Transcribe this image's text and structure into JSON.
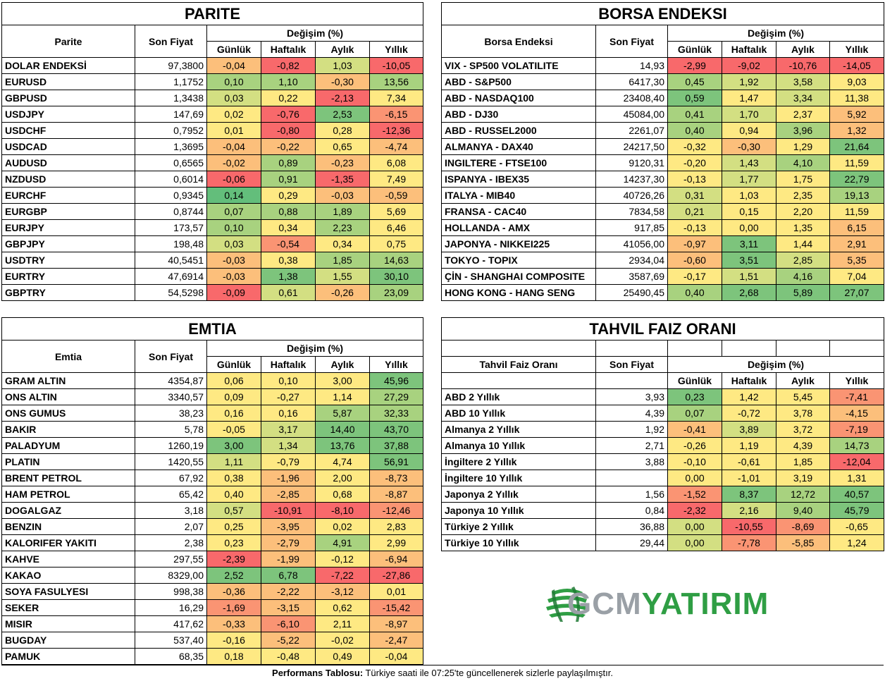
{
  "colors": {
    "red": "#f8696b",
    "orange_red": "#fa9473",
    "orange": "#fcbf7b",
    "yellow": "#fee983",
    "lime": "#d3df82",
    "light_green": "#a8d27f",
    "green": "#7dc47c",
    "dark_green": "#63be7b"
  },
  "common_headers": {
    "son_fiyat": "Son Fiyat",
    "degisim": "Değişim (%)",
    "gunluk": "Günlük",
    "haftalik": "Haftalık",
    "aylik": "Aylık",
    "yillik": "Yıllık"
  },
  "parite": {
    "title": "PARITE",
    "col": "Parite",
    "rows": [
      [
        "DOLAR ENDEKSİ",
        "97,3800",
        "-0,04",
        "-0,82",
        "1,03",
        "-10,05"
      ],
      [
        "EURUSD",
        "1,1752",
        "0,10",
        "1,10",
        "-0,30",
        "13,56"
      ],
      [
        "GBPUSD",
        "1,3438",
        "0,03",
        "0,22",
        "-2,13",
        "7,34"
      ],
      [
        "USDJPY",
        "147,69",
        "0,02",
        "-0,76",
        "2,53",
        "-6,15"
      ],
      [
        "USDCHF",
        "0,7952",
        "0,01",
        "-0,80",
        "0,28",
        "-12,36"
      ],
      [
        "USDCAD",
        "1,3695",
        "-0,04",
        "-0,22",
        "0,65",
        "-4,74"
      ],
      [
        "AUDUSD",
        "0,6565",
        "-0,02",
        "0,89",
        "-0,23",
        "6,08"
      ],
      [
        "NZDUSD",
        "0,6014",
        "-0,06",
        "0,91",
        "-1,35",
        "7,49"
      ],
      [
        "EURCHF",
        "0,9345",
        "0,14",
        "0,29",
        "-0,03",
        "-0,59"
      ],
      [
        "EURGBP",
        "0,8744",
        "0,07",
        "0,88",
        "1,89",
        "5,69"
      ],
      [
        "EURJPY",
        "173,57",
        "0,10",
        "0,34",
        "2,23",
        "6,46"
      ],
      [
        "GBPJPY",
        "198,48",
        "0,03",
        "-0,54",
        "0,34",
        "0,75"
      ],
      [
        "USDTRY",
        "40,5451",
        "-0,03",
        "0,38",
        "1,85",
        "14,63"
      ],
      [
        "EURTRY",
        "47,6914",
        "-0,03",
        "1,38",
        "1,55",
        "30,10"
      ],
      [
        "GBPTRY",
        "54,5298",
        "-0,09",
        "0,61",
        "-0,26",
        "23,09"
      ]
    ],
    "colors": [
      [
        "orange",
        "red",
        "lime",
        "red"
      ],
      [
        "light_green",
        "light_green",
        "orange",
        "light_green"
      ],
      [
        "lime",
        "yellow",
        "red",
        "yellow"
      ],
      [
        "yellow",
        "red",
        "green",
        "orange_red"
      ],
      [
        "yellow",
        "red",
        "yellow",
        "red"
      ],
      [
        "orange",
        "orange",
        "yellow",
        "orange"
      ],
      [
        "orange",
        "light_green",
        "orange",
        "yellow"
      ],
      [
        "red",
        "light_green",
        "red",
        "yellow"
      ],
      [
        "dark_green",
        "yellow",
        "orange",
        "orange"
      ],
      [
        "light_green",
        "light_green",
        "light_green",
        "yellow"
      ],
      [
        "light_green",
        "yellow",
        "light_green",
        "yellow"
      ],
      [
        "lime",
        "orange_red",
        "yellow",
        "yellow"
      ],
      [
        "orange",
        "yellow",
        "light_green",
        "light_green"
      ],
      [
        "orange",
        "green",
        "lime",
        "green"
      ],
      [
        "red",
        "lime",
        "orange",
        "light_green"
      ]
    ]
  },
  "borsa": {
    "title": "BORSA ENDEKSI",
    "col": "Borsa Endeksi",
    "rows": [
      [
        "VIX  - SP500 VOLATILITE",
        "14,93",
        "-2,99",
        "-9,02",
        "-10,76",
        "-14,05"
      ],
      [
        "ABD - S&P500",
        "6417,30",
        "0,45",
        "1,92",
        "3,58",
        "9,03"
      ],
      [
        "ABD - NASDAQ100",
        "23408,40",
        "0,59",
        "1,47",
        "3,34",
        "11,38"
      ],
      [
        "ABD - DJ30",
        "45084,00",
        "0,41",
        "1,70",
        "2,37",
        "5,92"
      ],
      [
        "ABD - RUSSEL2000",
        "2261,07",
        "0,40",
        "0,94",
        "3,96",
        "1,32"
      ],
      [
        "ALMANYA - DAX40",
        "24217,50",
        "-0,32",
        "-0,30",
        "1,29",
        "21,64"
      ],
      [
        "INGILTERE - FTSE100",
        "9120,31",
        "-0,20",
        "1,43",
        "4,10",
        "11,59"
      ],
      [
        "ISPANYA - IBEX35",
        "14237,30",
        "-0,13",
        "1,77",
        "1,75",
        "22,79"
      ],
      [
        "ITALYA - MIB40",
        "40726,26",
        "0,31",
        "1,03",
        "2,35",
        "19,13"
      ],
      [
        "FRANSA - CAC40",
        "7834,58",
        "0,21",
        "0,15",
        "2,20",
        "11,59"
      ],
      [
        "HOLLANDA - AMX",
        "917,85",
        "-0,13",
        "0,00",
        "1,35",
        "6,15"
      ],
      [
        "JAPONYA - NIKKEI225",
        "41056,00",
        "-0,97",
        "3,11",
        "1,44",
        "2,91"
      ],
      [
        "TOKYO - TOPIX",
        "2934,04",
        "-0,60",
        "3,51",
        "2,85",
        "5,35"
      ],
      [
        "ÇİN - SHANGHAI COMPOSITE",
        "3587,69",
        "-0,17",
        "1,51",
        "4,16",
        "7,04"
      ],
      [
        "HONG KONG - HANG SENG",
        "25490,45",
        "0,40",
        "2,68",
        "5,89",
        "27,07"
      ]
    ],
    "colors": [
      [
        "red",
        "red",
        "red",
        "red"
      ],
      [
        "light_green",
        "lime",
        "lime",
        "yellow"
      ],
      [
        "green",
        "yellow",
        "lime",
        "yellow"
      ],
      [
        "light_green",
        "lime",
        "yellow",
        "orange"
      ],
      [
        "light_green",
        "yellow",
        "light_green",
        "orange"
      ],
      [
        "yellow",
        "orange",
        "yellow",
        "green"
      ],
      [
        "yellow",
        "lime",
        "light_green",
        "yellow"
      ],
      [
        "yellow",
        "lime",
        "yellow",
        "green"
      ],
      [
        "lime",
        "yellow",
        "yellow",
        "light_green"
      ],
      [
        "lime",
        "yellow",
        "yellow",
        "yellow"
      ],
      [
        "yellow",
        "yellow",
        "yellow",
        "orange"
      ],
      [
        "orange",
        "green",
        "yellow",
        "orange"
      ],
      [
        "orange",
        "green",
        "lime",
        "orange"
      ],
      [
        "yellow",
        "lime",
        "light_green",
        "yellow"
      ],
      [
        "light_green",
        "green",
        "green",
        "green"
      ]
    ]
  },
  "emtia": {
    "title": "EMTIA",
    "col": "Emtia",
    "rows": [
      [
        "GRAM ALTIN",
        "4354,87",
        "0,06",
        "0,10",
        "3,00",
        "45,96"
      ],
      [
        "ONS ALTIN",
        "3340,57",
        "0,09",
        "-0,27",
        "1,14",
        "27,29"
      ],
      [
        "ONS GUMUS",
        "38,23",
        "0,16",
        "0,16",
        "5,87",
        "32,33"
      ],
      [
        "BAKIR",
        "5,78",
        "-0,05",
        "3,17",
        "14,40",
        "43,70"
      ],
      [
        "PALADYUM",
        "1260,19",
        "3,00",
        "1,34",
        "13,76",
        "37,88"
      ],
      [
        "PLATIN",
        "1420,55",
        "1,11",
        "-0,79",
        "4,74",
        "56,91"
      ],
      [
        "BRENT PETROL",
        "67,92",
        "0,38",
        "-1,96",
        "2,00",
        "-8,73"
      ],
      [
        "HAM PETROL",
        "65,42",
        "0,40",
        "-2,85",
        "0,68",
        "-8,87"
      ],
      [
        "DOGALGAZ",
        "3,18",
        "0,57",
        "-10,91",
        "-8,10",
        "-12,46"
      ],
      [
        "BENZIN",
        "2,07",
        "0,25",
        "-3,95",
        "0,02",
        "2,83"
      ],
      [
        "KALORIFER YAKITI",
        "2,38",
        "0,23",
        "-2,79",
        "4,91",
        "2,99"
      ],
      [
        "KAHVE",
        "297,55",
        "-2,39",
        "-1,99",
        "-0,12",
        "-6,94"
      ],
      [
        "KAKAO",
        "8329,00",
        "2,52",
        "6,78",
        "-7,22",
        "-27,86"
      ],
      [
        "SOYA FASULYESI",
        "998,38",
        "-0,36",
        "-2,22",
        "-3,12",
        "0,01"
      ],
      [
        "SEKER",
        "16,29",
        "-1,69",
        "-3,15",
        "0,62",
        "-15,42"
      ],
      [
        "MISIR",
        "417,62",
        "-0,33",
        "-6,10",
        "2,11",
        "-8,97"
      ],
      [
        "BUGDAY",
        "537,40",
        "-0,16",
        "-5,22",
        "-0,02",
        "-2,47"
      ],
      [
        "PAMUK",
        "68,35",
        "0,18",
        "-0,48",
        "0,49",
        "-0,04"
      ]
    ],
    "colors": [
      [
        "yellow",
        "yellow",
        "yellow",
        "green"
      ],
      [
        "yellow",
        "yellow",
        "yellow",
        "light_green"
      ],
      [
        "yellow",
        "yellow",
        "light_green",
        "light_green"
      ],
      [
        "yellow",
        "lime",
        "green",
        "green"
      ],
      [
        "green",
        "lime",
        "green",
        "green"
      ],
      [
        "lime",
        "yellow",
        "yellow",
        "green"
      ],
      [
        "yellow",
        "orange",
        "yellow",
        "orange"
      ],
      [
        "yellow",
        "orange",
        "yellow",
        "orange"
      ],
      [
        "lime",
        "red",
        "red",
        "orange_red"
      ],
      [
        "yellow",
        "orange",
        "yellow",
        "yellow"
      ],
      [
        "yellow",
        "orange",
        "light_green",
        "yellow"
      ],
      [
        "red",
        "orange",
        "yellow",
        "orange"
      ],
      [
        "green",
        "green",
        "red",
        "red"
      ],
      [
        "orange",
        "orange",
        "orange",
        "yellow"
      ],
      [
        "orange_red",
        "orange",
        "yellow",
        "orange_red"
      ],
      [
        "orange",
        "orange_red",
        "yellow",
        "orange"
      ],
      [
        "yellow",
        "orange",
        "yellow",
        "orange"
      ],
      [
        "yellow",
        "yellow",
        "yellow",
        "yellow"
      ]
    ]
  },
  "tahvil": {
    "title": "TAHVIL FAIZ ORANI",
    "col": "Tahvil Faiz Oranı",
    "rows": [
      [
        "ABD 2 Yıllık",
        "3,93",
        "0,23",
        "1,42",
        "5,45",
        "-7,41"
      ],
      [
        "ABD 10 Yıllık",
        "4,39",
        "0,07",
        "-0,72",
        "3,78",
        "-4,15"
      ],
      [
        "Almanya 2 Yıllık",
        "1,92",
        "-0,41",
        "3,89",
        "3,72",
        "-7,19"
      ],
      [
        "Almanya 10 Yıllık",
        "2,71",
        "-0,26",
        "1,19",
        "4,39",
        "14,73"
      ],
      [
        "İngiltere 2 Yıllık",
        "3,88",
        "-0,10",
        "-0,61",
        "1,85",
        "-12,04"
      ],
      [
        "İngiltere 10 Yıllık",
        "",
        "0,00",
        "-1,01",
        "3,19",
        "1,31"
      ],
      [
        "Japonya 2 Yıllık",
        "1,56",
        "-1,52",
        "8,37",
        "12,72",
        "40,57"
      ],
      [
        "Japonya 10 Yıllık",
        "0,84",
        "-2,32",
        "2,16",
        "9,40",
        "45,79"
      ],
      [
        "Türkiye 2 Yıllık",
        "36,88",
        "0,00",
        "-10,55",
        "-8,69",
        "-0,65"
      ],
      [
        "Türkiye 10 Yıllık",
        "29,44",
        "0,00",
        "-7,78",
        "-5,85",
        "1,24"
      ]
    ],
    "colors": [
      [
        "green",
        "yellow",
        "yellow",
        "orange_red"
      ],
      [
        "light_green",
        "yellow",
        "yellow",
        "orange"
      ],
      [
        "orange",
        "lime",
        "yellow",
        "orange_red"
      ],
      [
        "yellow",
        "yellow",
        "yellow",
        "light_green"
      ],
      [
        "yellow",
        "yellow",
        "yellow",
        "red"
      ],
      [
        "yellow",
        "yellow",
        "yellow",
        "yellow"
      ],
      [
        "orange_red",
        "green",
        "light_green",
        "green"
      ],
      [
        "red",
        "lime",
        "light_green",
        "green"
      ],
      [
        "lime",
        "red",
        "orange_red",
        "yellow"
      ],
      [
        "lime",
        "orange_red",
        "orange",
        "yellow"
      ]
    ]
  },
  "logo": {
    "gcm": "GCM",
    "yatirim": "YATIRIM"
  },
  "footer": {
    "bold": "Performans Tablosu:",
    "text": " Türkiye saati ile 07:25'te güncellenerek sizlerle paylaşılmıştır."
  }
}
